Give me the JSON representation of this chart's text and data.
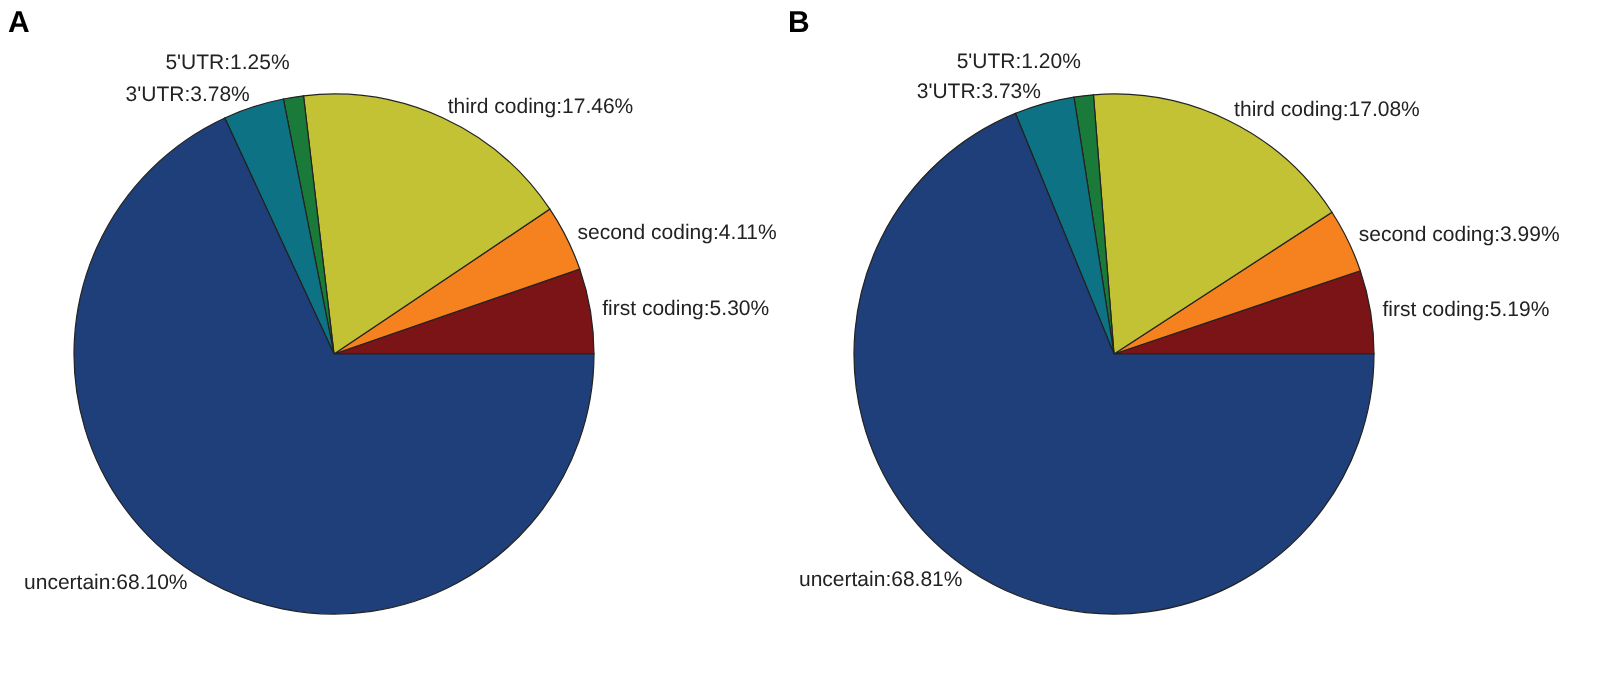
{
  "chart_data": [
    {
      "type": "pie",
      "title": "A",
      "categories": [
        "first coding",
        "second coding",
        "third coding",
        "5'UTR",
        "3'UTR",
        "uncertain"
      ],
      "values": [
        5.3,
        4.11,
        17.46,
        1.25,
        3.78,
        68.1
      ],
      "colors": [
        "#7b1416",
        "#f5821f",
        "#c3c234",
        "#1a7a3a",
        "#0d7384",
        "#1f3f7a"
      ],
      "value_labels": [
        "5.30%",
        "4.11%",
        "17.46%",
        "1.25%",
        "3.78%",
        "68.10%"
      ]
    },
    {
      "type": "pie",
      "title": "B",
      "categories": [
        "first coding",
        "second coding",
        "third coding",
        "5'UTR",
        "3'UTR",
        "uncertain"
      ],
      "values": [
        5.19,
        3.99,
        17.08,
        1.2,
        3.73,
        68.81
      ],
      "colors": [
        "#7b1416",
        "#f5821f",
        "#c3c234",
        "#1a7a3a",
        "#0d7384",
        "#1f3f7a"
      ],
      "value_labels": [
        "5.19%",
        "3.99%",
        "17.08%",
        "1.20%",
        "3.73%",
        "68.81%"
      ]
    }
  ]
}
